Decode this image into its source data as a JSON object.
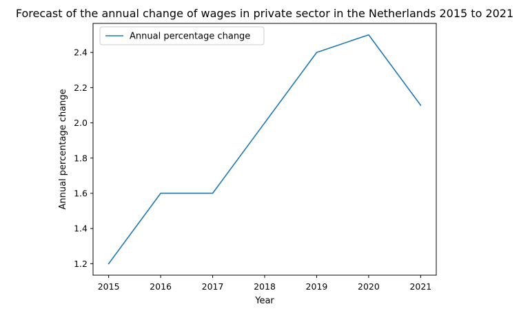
{
  "chart_data": {
    "type": "line",
    "title": "Forecast of the annual change of wages in private sector in the Netherlands 2015 to 2021",
    "xlabel": "Year",
    "ylabel": "Annual percentage change",
    "x": [
      2015,
      2016,
      2017,
      2018,
      2019,
      2020,
      2021
    ],
    "x_tick_labels": [
      "2015",
      "2016",
      "2017",
      "2018",
      "2019",
      "2020",
      "2021"
    ],
    "y_ticks": [
      1.2,
      1.4,
      1.6,
      1.8,
      2.0,
      2.2,
      2.4
    ],
    "y_tick_labels": [
      "1.2",
      "1.4",
      "1.6",
      "1.8",
      "2.0",
      "2.2",
      "2.4"
    ],
    "ylim": [
      1.135,
      2.565
    ],
    "xlim": [
      2014.7,
      2021.3
    ],
    "series": [
      {
        "name": "Annual percentage change",
        "values": [
          1.2,
          1.6,
          1.6,
          2.0,
          2.4,
          2.5,
          2.1
        ],
        "color": "#1f77b4"
      }
    ],
    "legend": "top-left",
    "grid": false
  }
}
